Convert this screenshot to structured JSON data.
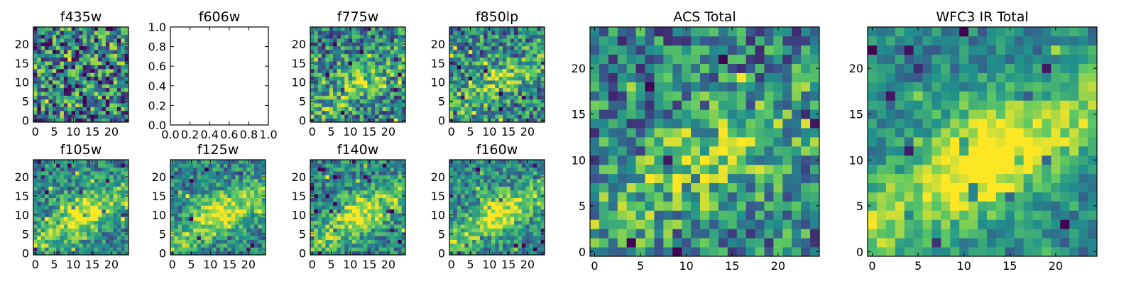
{
  "figure": {
    "background": "#ffffff",
    "colormap": "viridis",
    "colormap_stops": [
      "#440154",
      "#3b528b",
      "#21918c",
      "#5ec962",
      "#fde725"
    ]
  },
  "chart_data": [
    {
      "type": "heatmap",
      "title": "f435w",
      "xlim": [
        -0.5,
        24.5
      ],
      "ylim": [
        -0.5,
        24.5
      ],
      "xticks": [
        0,
        5,
        10,
        15,
        20
      ],
      "yticks": [
        0,
        5,
        10,
        15,
        20
      ],
      "grid": false,
      "pattern": "noise",
      "seed": 11
    },
    {
      "type": "heatmap",
      "title": "f606w",
      "empty": true,
      "xlim": [
        0,
        1
      ],
      "ylim": [
        0,
        1
      ],
      "xticks": [
        0.0,
        0.2,
        0.4,
        0.6,
        0.8,
        1.0
      ],
      "yticks": [
        0.0,
        0.2,
        0.4,
        0.6,
        0.8,
        1.0
      ],
      "tick_format": "1dp",
      "grid": false
    },
    {
      "type": "heatmap",
      "title": "f775w",
      "xlim": [
        -0.5,
        24.5
      ],
      "ylim": [
        -0.5,
        24.5
      ],
      "xticks": [
        0,
        5,
        10,
        15,
        20
      ],
      "yticks": [
        0,
        5,
        10,
        15,
        20
      ],
      "grid": false,
      "pattern": "weak-diagonal",
      "seed": 23
    },
    {
      "type": "heatmap",
      "title": "f850lp",
      "xlim": [
        -0.5,
        24.5
      ],
      "ylim": [
        -0.5,
        24.5
      ],
      "xticks": [
        0,
        5,
        10,
        15,
        20
      ],
      "yticks": [
        0,
        5,
        10,
        15,
        20
      ],
      "grid": false,
      "pattern": "weak-diagonal",
      "seed": 37
    },
    {
      "type": "heatmap",
      "title": "f105w",
      "xlim": [
        -0.5,
        24.5
      ],
      "ylim": [
        -0.5,
        24.5
      ],
      "xticks": [
        0,
        5,
        10,
        15,
        20
      ],
      "yticks": [
        0,
        5,
        10,
        15,
        20
      ],
      "grid": false,
      "pattern": "diagonal",
      "seed": 41
    },
    {
      "type": "heatmap",
      "title": "f125w",
      "xlim": [
        -0.5,
        24.5
      ],
      "ylim": [
        -0.5,
        24.5
      ],
      "xticks": [
        0,
        5,
        10,
        15,
        20
      ],
      "yticks": [
        0,
        5,
        10,
        15,
        20
      ],
      "grid": false,
      "pattern": "diagonal",
      "seed": 53
    },
    {
      "type": "heatmap",
      "title": "f140w",
      "xlim": [
        -0.5,
        24.5
      ],
      "ylim": [
        -0.5,
        24.5
      ],
      "xticks": [
        0,
        5,
        10,
        15,
        20
      ],
      "yticks": [
        0,
        5,
        10,
        15,
        20
      ],
      "grid": false,
      "pattern": "diagonal",
      "seed": 67
    },
    {
      "type": "heatmap",
      "title": "f160w",
      "xlim": [
        -0.5,
        24.5
      ],
      "ylim": [
        -0.5,
        24.5
      ],
      "xticks": [
        0,
        5,
        10,
        15,
        20
      ],
      "yticks": [
        0,
        5,
        10,
        15,
        20
      ],
      "grid": false,
      "pattern": "diagonal",
      "seed": 79
    },
    {
      "type": "heatmap",
      "title": "ACS Total",
      "xlim": [
        -0.5,
        24.5
      ],
      "ylim": [
        -0.5,
        24.5
      ],
      "xticks": [
        0,
        5,
        10,
        15,
        20
      ],
      "yticks": [
        0,
        5,
        10,
        15,
        20
      ],
      "grid": false,
      "pattern": "weak-diagonal",
      "seed": 97
    },
    {
      "type": "heatmap",
      "title": "WFC3 IR Total",
      "xlim": [
        -0.5,
        24.5
      ],
      "ylim": [
        -0.5,
        24.5
      ],
      "xticks": [
        0,
        5,
        10,
        15,
        20
      ],
      "yticks": [
        0,
        5,
        10,
        15,
        20
      ],
      "grid": false,
      "pattern": "strong-diagonal",
      "seed": 131
    }
  ]
}
